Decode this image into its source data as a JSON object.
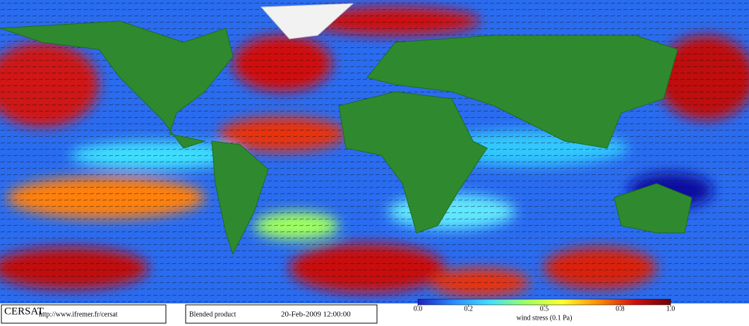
{
  "footer": {
    "logo": "CERSAT",
    "url": "http://www.ifremer.fr/cersat",
    "product": "Blended product",
    "date": "20-Feb-2009 12:00:00"
  },
  "colorbar": {
    "label": "wind stress (0.1 Pa)",
    "range": [
      0,
      1
    ],
    "ticks": [
      {
        "value": 0,
        "label": "0.0"
      },
      0.2,
      0.5,
      0.8,
      {
        "value": 1,
        "label": "1.0"
      }
    ],
    "colors": [
      "#2020c0",
      "#2a8cff",
      "#40e0ff",
      "#a0ff60",
      "#ffff30",
      "#ff8c00",
      "#d01010",
      "#700000"
    ]
  }
}
